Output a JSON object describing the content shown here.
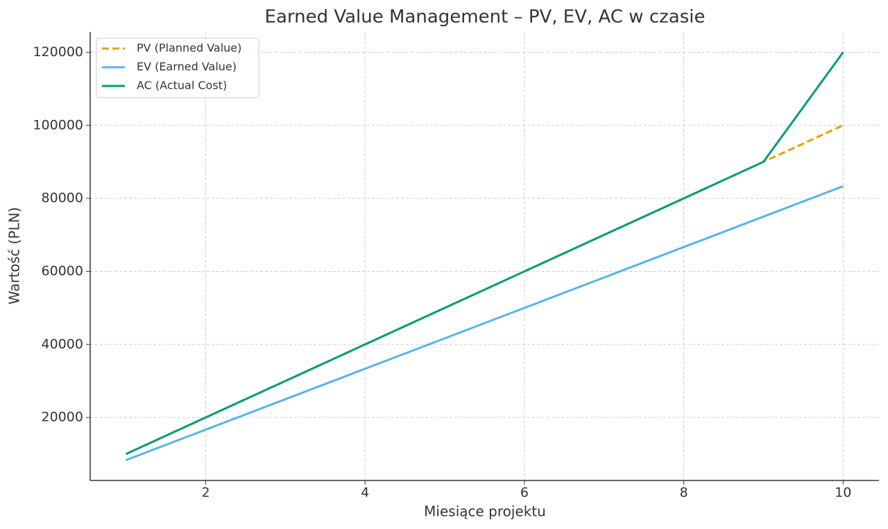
{
  "chart_data": {
    "type": "line",
    "title": "Earned Value Management – PV, EV, AC w czasie",
    "x_label": "Miesiące projektu",
    "y_label": "Wartość (PLN)",
    "x": [
      1,
      2,
      3,
      4,
      5,
      6,
      7,
      8,
      9,
      10
    ],
    "series": [
      {
        "name": "PV (Planned Value)",
        "color": "#E69F00",
        "dashed": true,
        "values": [
          10000,
          20000,
          30000,
          40000,
          50000,
          60000,
          70000,
          80000,
          90000,
          100000
        ]
      },
      {
        "name": "EV (Earned Value)",
        "color": "#56B4E9",
        "dashed": false,
        "values": [
          8333,
          16667,
          25000,
          33333,
          41667,
          50000,
          58333,
          66667,
          75000,
          83333
        ]
      },
      {
        "name": "AC (Actual Cost)",
        "color": "#009E73",
        "dashed": false,
        "values": [
          10000,
          20000,
          30000,
          40000,
          50000,
          60000,
          70000,
          80000,
          90000,
          120000
        ]
      }
    ],
    "xlim": [
      0.55,
      10.45
    ],
    "ylim": [
      2750,
      125583
    ],
    "xticks": [
      2,
      4,
      6,
      8,
      10
    ],
    "yticks": [
      20000,
      40000,
      60000,
      80000,
      100000,
      120000
    ],
    "grid": true,
    "legend": "upper left"
  }
}
